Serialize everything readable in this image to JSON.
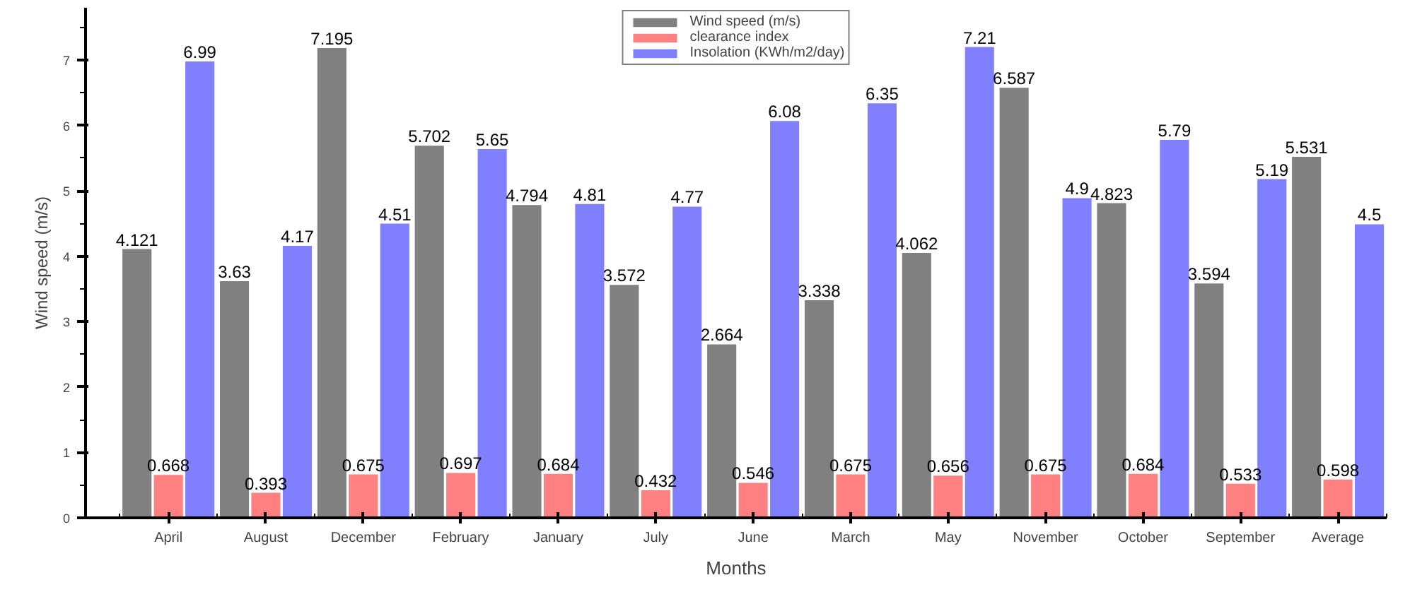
{
  "chart_data": {
    "type": "bar",
    "xlabel": "Months",
    "ylabel": "Wind speed (m/s)",
    "categories": [
      "April",
      "August",
      "December",
      "February",
      "January",
      "July",
      "June",
      "March",
      "May",
      "November",
      "October",
      "September",
      "Average"
    ],
    "series": [
      {
        "name": "Wind speed (m/s)",
        "color": "#808080",
        "values": [
          4.121,
          3.63,
          7.195,
          5.702,
          4.794,
          3.572,
          2.664,
          3.338,
          4.062,
          6.587,
          4.823,
          3.594,
          5.531
        ]
      },
      {
        "name": "clearance index",
        "color": "#ff8080",
        "values": [
          0.668,
          0.393,
          0.675,
          0.697,
          0.684,
          0.432,
          0.546,
          0.675,
          0.656,
          0.675,
          0.684,
          0.533,
          0.598
        ]
      },
      {
        "name": "Insolation (KWh/m2/day)",
        "color": "#8080ff",
        "values": [
          6.99,
          4.17,
          4.51,
          5.65,
          4.81,
          4.77,
          6.08,
          6.35,
          7.21,
          4.9,
          5.79,
          5.19,
          4.5
        ]
      }
    ],
    "ylim": [
      0,
      7.8
    ],
    "yticks": [
      0,
      1,
      2,
      3,
      4,
      5,
      6,
      7
    ],
    "grid": false,
    "legend": "top",
    "data_labels": true
  }
}
